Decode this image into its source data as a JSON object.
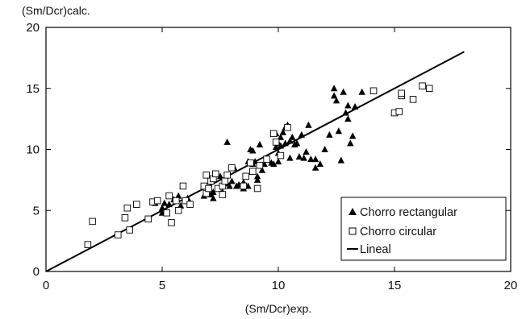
{
  "chart_data": {
    "type": "scatter",
    "title": "",
    "xlabel": "(Sm/Dcr)exp.",
    "ylabel": "(Sm/Dcr)calc.",
    "xlim": [
      0,
      20
    ],
    "ylim": [
      0,
      20
    ],
    "x_ticks": [
      0,
      5,
      10,
      15,
      20
    ],
    "y_ticks": [
      0,
      5,
      10,
      15,
      20
    ],
    "x_tick_labels": [
      "0",
      "5",
      "10",
      "15",
      "20"
    ],
    "y_tick_labels": [
      "0",
      "5",
      "10",
      "15",
      "20"
    ],
    "grid": false,
    "legend": {
      "position": "bottom-right",
      "entries": [
        "Chorro rectangular",
        "Chorro circular",
        "Lineal"
      ]
    },
    "series": [
      {
        "name": "Chorro rectangular",
        "marker": "filled-triangle",
        "color": "#000000",
        "points": [
          [
            4.7,
            5.6
          ],
          [
            4.8,
            5.8
          ],
          [
            5.0,
            4.8
          ],
          [
            5.0,
            5.2
          ],
          [
            5.1,
            5.6
          ],
          [
            5.3,
            5.5
          ],
          [
            5.5,
            5.9
          ],
          [
            5.7,
            6.2
          ],
          [
            5.8,
            5.4
          ],
          [
            6.1,
            6.0
          ],
          [
            6.8,
            6.2
          ],
          [
            7.0,
            6.8
          ],
          [
            7.1,
            6.3
          ],
          [
            7.2,
            6.0
          ],
          [
            7.2,
            6.5
          ],
          [
            7.5,
            7.0
          ],
          [
            7.5,
            7.8
          ],
          [
            7.6,
            6.5
          ],
          [
            7.8,
            7.2
          ],
          [
            7.8,
            10.6
          ],
          [
            7.9,
            7.0
          ],
          [
            8.0,
            7.4
          ],
          [
            8.1,
            8.5
          ],
          [
            8.2,
            7.0
          ],
          [
            8.3,
            7.1
          ],
          [
            8.5,
            7.3
          ],
          [
            8.5,
            6.8
          ],
          [
            8.7,
            7.0
          ],
          [
            8.7,
            9.0
          ],
          [
            8.8,
            10.0
          ],
          [
            8.9,
            8.8
          ],
          [
            8.9,
            9.9
          ],
          [
            9.0,
            9.0
          ],
          [
            9.1,
            7.5
          ],
          [
            9.1,
            7.8
          ],
          [
            9.2,
            10.4
          ],
          [
            9.3,
            8.3
          ],
          [
            9.4,
            8.8
          ],
          [
            9.7,
            8.9
          ],
          [
            9.8,
            8.8
          ],
          [
            9.9,
            10.2
          ],
          [
            9.9,
            11.3
          ],
          [
            10.0,
            9.0
          ],
          [
            10.0,
            9.7
          ],
          [
            10.0,
            10.5
          ],
          [
            10.1,
            10.3
          ],
          [
            10.1,
            11.0
          ],
          [
            10.2,
            11.4
          ],
          [
            10.3,
            10.5
          ],
          [
            10.3,
            11.8
          ],
          [
            10.4,
            12.0
          ],
          [
            10.5,
            10.7
          ],
          [
            10.5,
            9.3
          ],
          [
            10.6,
            11.0
          ],
          [
            10.7,
            10.4
          ],
          [
            10.8,
            10.5
          ],
          [
            10.9,
            9.4
          ],
          [
            11.0,
            11.2
          ],
          [
            11.1,
            9.3
          ],
          [
            11.2,
            9.8
          ],
          [
            11.3,
            12.0
          ],
          [
            11.4,
            9.2
          ],
          [
            11.6,
            8.5
          ],
          [
            11.6,
            9.2
          ],
          [
            11.8,
            8.8
          ],
          [
            12.0,
            10.0
          ],
          [
            12.2,
            11.2
          ],
          [
            12.4,
            14.4
          ],
          [
            12.4,
            15.0
          ],
          [
            12.5,
            14.0
          ],
          [
            12.6,
            11.5
          ],
          [
            12.7,
            9.1
          ],
          [
            12.8,
            14.7
          ],
          [
            12.9,
            13.0
          ],
          [
            13.0,
            13.6
          ],
          [
            13.0,
            12.5
          ],
          [
            13.1,
            10.5
          ],
          [
            13.2,
            11.1
          ],
          [
            13.3,
            13.5
          ],
          [
            13.6,
            14.7
          ]
        ]
      },
      {
        "name": "Chorro circular",
        "marker": "open-square",
        "color": "#000000",
        "points": [
          [
            1.8,
            2.2
          ],
          [
            2.0,
            4.1
          ],
          [
            3.1,
            3.0
          ],
          [
            3.4,
            4.4
          ],
          [
            3.5,
            5.2
          ],
          [
            3.6,
            3.4
          ],
          [
            3.9,
            5.5
          ],
          [
            4.4,
            4.3
          ],
          [
            4.6,
            5.7
          ],
          [
            4.8,
            5.8
          ],
          [
            5.2,
            4.8
          ],
          [
            5.3,
            6.2
          ],
          [
            5.4,
            4.0
          ],
          [
            5.6,
            5.8
          ],
          [
            5.7,
            5.0
          ],
          [
            5.9,
            7.0
          ],
          [
            6.0,
            5.8
          ],
          [
            6.2,
            5.5
          ],
          [
            6.8,
            7.0
          ],
          [
            6.9,
            7.9
          ],
          [
            6.9,
            6.4
          ],
          [
            7.0,
            6.8
          ],
          [
            7.1,
            7.4
          ],
          [
            7.2,
            7.6
          ],
          [
            7.3,
            8.0
          ],
          [
            7.4,
            6.8
          ],
          [
            7.6,
            7.0
          ],
          [
            7.6,
            6.3
          ],
          [
            7.7,
            7.4
          ],
          [
            7.8,
            7.9
          ],
          [
            8.0,
            8.5
          ],
          [
            8.5,
            7.0
          ],
          [
            8.6,
            7.8
          ],
          [
            8.8,
            8.9
          ],
          [
            8.9,
            8.2
          ],
          [
            9.1,
            6.8
          ],
          [
            9.2,
            8.7
          ],
          [
            9.5,
            9.2
          ],
          [
            9.8,
            11.3
          ],
          [
            9.9,
            10.6
          ],
          [
            10.1,
            9.5
          ],
          [
            10.4,
            11.8
          ],
          [
            14.1,
            14.8
          ],
          [
            15.0,
            13.0
          ],
          [
            15.2,
            13.1
          ],
          [
            15.3,
            14.4
          ],
          [
            15.3,
            14.6
          ],
          [
            15.8,
            14.1
          ],
          [
            16.2,
            15.2
          ],
          [
            16.5,
            15.0
          ]
        ]
      },
      {
        "name": "Lineal",
        "type": "line",
        "color": "#000000",
        "x": [
          0,
          18
        ],
        "y": [
          0,
          18
        ]
      }
    ]
  }
}
